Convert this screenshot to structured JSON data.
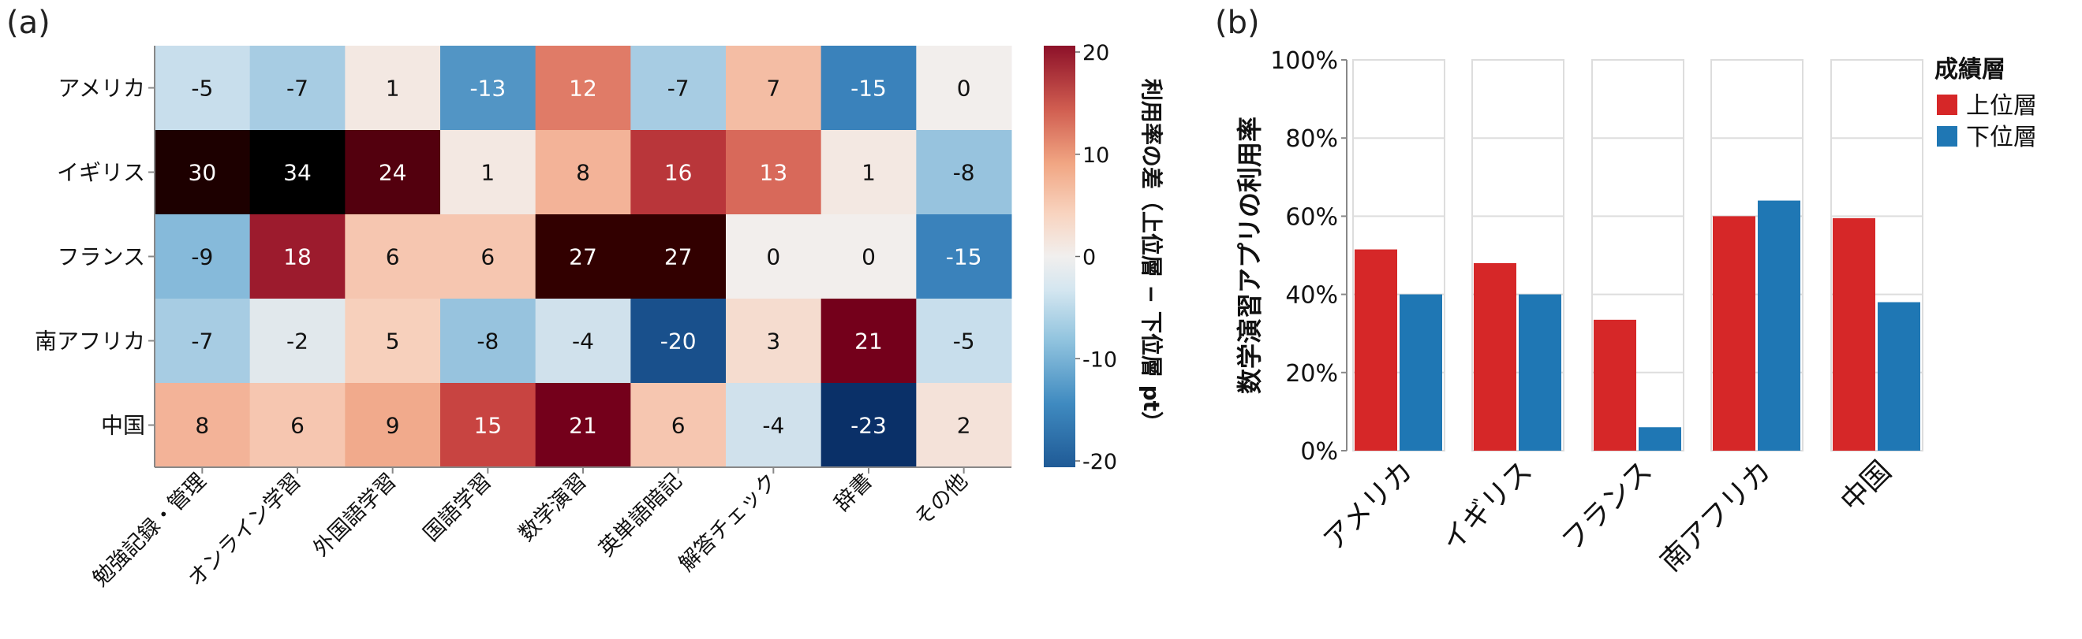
{
  "chart_data": [
    {
      "panel_label": "(a)",
      "type": "heatmap",
      "rows": [
        "アメリカ",
        "イギリス",
        "フランス",
        "南アフリカ",
        "中国"
      ],
      "columns": [
        "勉強記録・管理",
        "オンライン学習",
        "外国語学習",
        "国語学習",
        "数学演習",
        "英単語暗記",
        "解答チェック",
        "辞書",
        "その他"
      ],
      "values": [
        [
          -5,
          -7,
          1,
          -13,
          12,
          -7,
          7,
          -15,
          0
        ],
        [
          30,
          34,
          24,
          1,
          8,
          16,
          13,
          1,
          -8
        ],
        [
          -9,
          18,
          6,
          6,
          27,
          27,
          0,
          0,
          -15
        ],
        [
          -7,
          -2,
          5,
          -8,
          -4,
          -20,
          3,
          21,
          -5
        ],
        [
          8,
          6,
          9,
          15,
          21,
          6,
          -4,
          -23,
          2
        ]
      ],
      "colorbar": {
        "label": "利用率の差（上位層 − 下位層 pt）",
        "ticks": [
          "20",
          "10",
          "0",
          "-10",
          "-20"
        ],
        "range": [
          -20,
          20
        ],
        "colormap": "RdBu_r"
      }
    },
    {
      "panel_label": "(b)",
      "type": "bar",
      "categories": [
        "アメリカ",
        "イギリス",
        "フランス",
        "南アフリカ",
        "中国"
      ],
      "series": [
        {
          "name": "上位層",
          "color": "#d62728",
          "values": [
            51.5,
            48,
            33.5,
            60,
            59.5
          ]
        },
        {
          "name": "下位層",
          "color": "#1f77b4",
          "values": [
            40,
            40,
            6,
            64,
            38
          ]
        }
      ],
      "ylabel": "数学演習アプリの利用率",
      "yticks": [
        "0%",
        "20%",
        "40%",
        "60%",
        "80%",
        "100%"
      ],
      "ylim": [
        0,
        100
      ],
      "legend_title": "成績層",
      "legend_position": "top-right",
      "grid": true
    }
  ]
}
